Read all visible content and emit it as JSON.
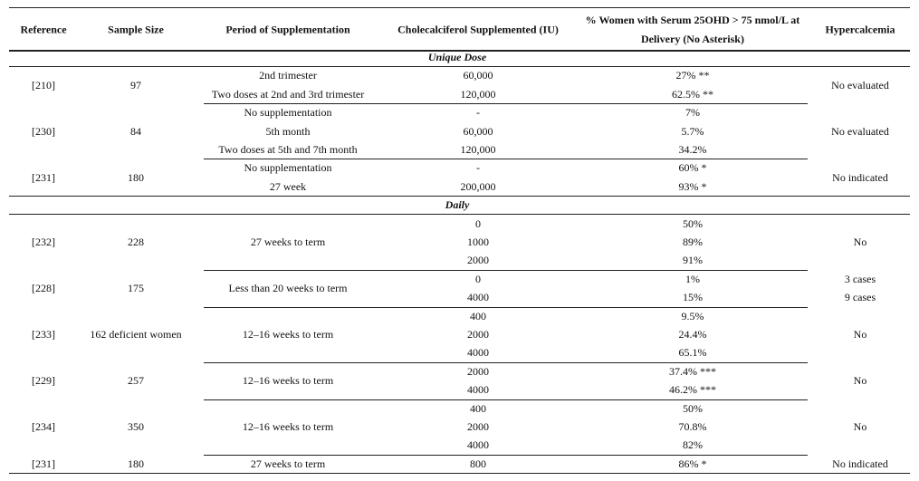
{
  "table": {
    "headers": [
      "Reference",
      "Sample Size",
      "Period of Supplementation",
      "Cholecalciferol Supplemented (IU)",
      "% Women with Serum 25OHD > 75 nmol/L at Delivery (No Asterisk)",
      "Hypercalcemia"
    ],
    "sections": [
      {
        "title": "Unique Dose",
        "groups": [
          {
            "reference": "[210]",
            "sample_size": "97",
            "hypercalcemia": "No evaluated",
            "rows": [
              {
                "period": "2nd trimester",
                "dose": "60,000",
                "percent": "27% **"
              },
              {
                "period": "Two doses at 2nd and 3rd trimester",
                "dose": "120,000",
                "percent": "62.5% **"
              }
            ]
          },
          {
            "reference": "[230]",
            "sample_size": "84",
            "hypercalcemia": "No evaluated",
            "rows": [
              {
                "period": "No supplementation",
                "dose": "-",
                "percent": "7%"
              },
              {
                "period": "5th month",
                "dose": "60,000",
                "percent": "5.7%"
              },
              {
                "period": "Two doses at 5th and 7th month",
                "dose": "120,000",
                "percent": "34.2%"
              }
            ]
          },
          {
            "reference": "[231]",
            "sample_size": "180",
            "hypercalcemia": "No indicated",
            "rows": [
              {
                "period": "No supplementation",
                "dose": "-",
                "percent": "60% *"
              },
              {
                "period": "27 week",
                "dose": "200,000",
                "percent": "93% *"
              }
            ]
          }
        ]
      },
      {
        "title": "Daily",
        "groups": [
          {
            "reference": "[232]",
            "sample_size": "228",
            "period": "27 weeks to term",
            "hypercalcemia": "No",
            "rows": [
              {
                "dose": "0",
                "percent": "50%"
              },
              {
                "dose": "1000",
                "percent": "89%"
              },
              {
                "dose": "2000",
                "percent": "91%"
              }
            ]
          },
          {
            "reference": "[228]",
            "sample_size": "175",
            "period": "Less than 20 weeks to term",
            "rows": [
              {
                "dose": "0",
                "percent": "1%",
                "hypercalcemia": "3 cases"
              },
              {
                "dose": "4000",
                "percent": "15%",
                "hypercalcemia": "9 cases"
              }
            ]
          },
          {
            "reference": "[233]",
            "sample_size": "162 deficient women",
            "period": "12–16 weeks to term",
            "hypercalcemia": "No",
            "rows": [
              {
                "dose": "400",
                "percent": "9.5%"
              },
              {
                "dose": "2000",
                "percent": "24.4%"
              },
              {
                "dose": "4000",
                "percent": "65.1%"
              }
            ]
          },
          {
            "reference": "[229]",
            "sample_size": "257",
            "period": "12–16 weeks to term",
            "hypercalcemia": "No",
            "rows": [
              {
                "dose": "2000",
                "percent": "37.4% ***"
              },
              {
                "dose": "4000",
                "percent": "46.2% ***"
              }
            ]
          },
          {
            "reference": "[234]",
            "sample_size": "350",
            "period": "12–16 weeks to term",
            "hypercalcemia": "No",
            "rows": [
              {
                "dose": "400",
                "percent": "50%"
              },
              {
                "dose": "2000",
                "percent": "70.8%"
              },
              {
                "dose": "4000",
                "percent": "82%"
              }
            ]
          },
          {
            "reference": "[231]",
            "sample_size": "180",
            "period": "27 weeks to term",
            "hypercalcemia": "No indicated",
            "rows": [
              {
                "dose": "800",
                "percent": "86% *"
              }
            ]
          }
        ]
      }
    ]
  }
}
